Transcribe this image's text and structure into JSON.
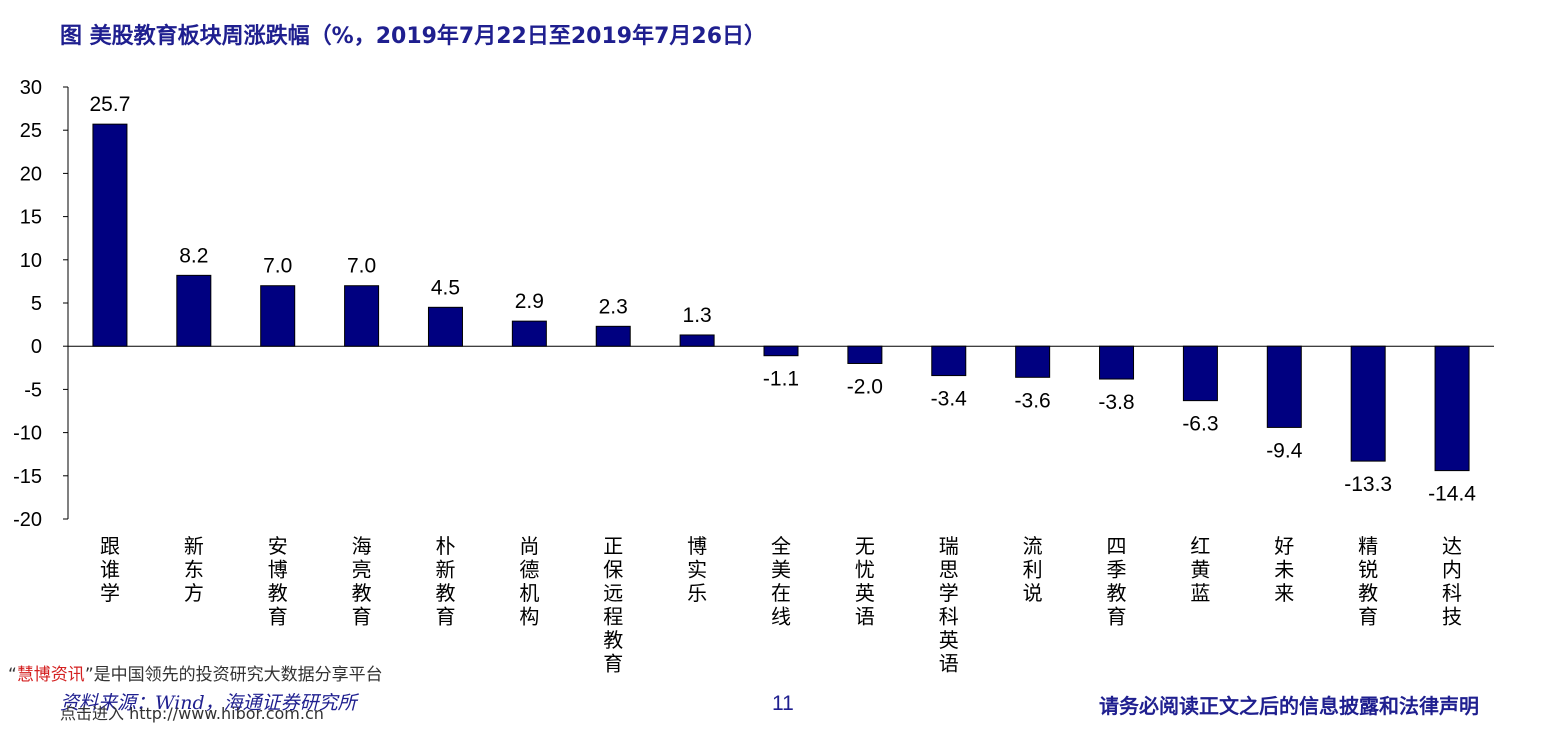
{
  "chart_title": "图  美股教育板块周涨跌幅（%，2019年7月22日至2019年7月26日）",
  "chart_data": {
    "type": "bar",
    "title": "美股教育板块周涨跌幅（%，2019年7月22日至2019年7月26日）",
    "categories": [
      "跟谁学",
      "新东方",
      "安博教育",
      "海亮教育",
      "朴新教育",
      "尚德机构",
      "正保远程教育",
      "博实乐",
      "全美在线",
      "无忧英语",
      "瑞思学科英语",
      "流利说",
      "四季教育",
      "红黄蓝",
      "好未来",
      "精锐教育",
      "达内科技"
    ],
    "values": [
      25.7,
      8.2,
      7.0,
      7.0,
      4.5,
      2.9,
      2.3,
      1.3,
      -1.1,
      -2.0,
      -3.4,
      -3.6,
      -3.8,
      -6.3,
      -9.4,
      -13.3,
      -14.4
    ],
    "value_labels": [
      "25.7",
      "8.2",
      "7.0",
      "7.0",
      "4.5",
      "2.9",
      "2.3",
      "1.3",
      "-1.1",
      "-2.0",
      "-3.4",
      "-3.6",
      "-3.8",
      "-6.3",
      "-9.4",
      "-13.3",
      "-14.4"
    ],
    "ylim": [
      -20,
      30
    ],
    "yticks": [
      "30",
      "25",
      "20",
      "15",
      "10",
      "5",
      "0",
      "-5",
      "-10",
      "-15",
      "-20"
    ],
    "xlabel": "",
    "ylabel": "",
    "bar_color": "#000080"
  },
  "watermark": {
    "quote_open": "“",
    "brand": "慧博资讯",
    "quote_close": "”",
    "slogan": "是中国领先的投资研究大数据分享平台",
    "link": "点击进入 http://www.hibor.com.cn"
  },
  "footer": {
    "source": "资料来源：Wind，海通证券研究所",
    "page_number": "11",
    "disclaimer": "请务必阅读正文之后的信息披露和法律声明"
  }
}
